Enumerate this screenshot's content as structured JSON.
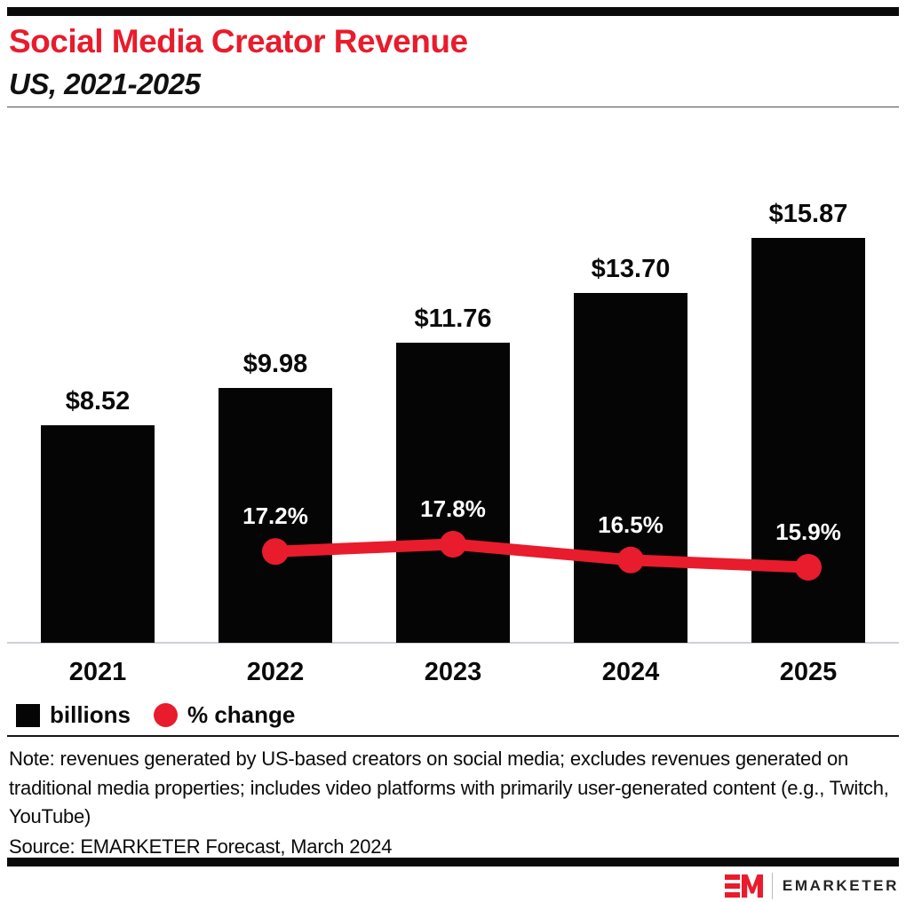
{
  "page": {
    "title": "Social Media Creator Revenue",
    "subtitle": "US, 2021-2025",
    "note": "Note: revenues generated by US-based creators on social media; excludes revenues generated on traditional media properties; includes video platforms with primarily user-generated content (e.g., Twitch, YouTube)",
    "source": "Source: EMARKETER Forecast, March 2024",
    "brand": {
      "logo_text": "EMARKETER"
    }
  },
  "legend": {
    "items": [
      {
        "swatch": "square",
        "label": "billions",
        "color": "#050505"
      },
      {
        "swatch": "circle",
        "label": "% change",
        "color": "#E81C2C"
      }
    ]
  },
  "colors": {
    "accent_red": "#E81C2C",
    "bar_black": "#050505",
    "axis_line": "#cfd0d6"
  },
  "chart_data": {
    "type": "bar",
    "combo": "bar+line",
    "title": "Social Media Creator Revenue",
    "subtitle": "US, 2021-2025",
    "categories": [
      "2021",
      "2022",
      "2023",
      "2024",
      "2025"
    ],
    "series": [
      {
        "name": "billions",
        "type": "bar",
        "unit": "USD billions",
        "values": [
          8.52,
          9.98,
          11.76,
          13.7,
          15.87
        ],
        "labels": [
          "$8.52",
          "$9.98",
          "$11.76",
          "$13.70",
          "$15.87"
        ]
      },
      {
        "name": "% change",
        "type": "line",
        "unit": "percent year-over-year",
        "values": [
          null,
          17.2,
          17.8,
          16.5,
          15.9
        ],
        "labels": [
          null,
          "17.2%",
          "17.8%",
          "16.5%",
          "15.9%"
        ]
      }
    ],
    "legend_position": "bottom-left",
    "grid": false,
    "x_axis_line": true,
    "value_labels_shown": true
  }
}
